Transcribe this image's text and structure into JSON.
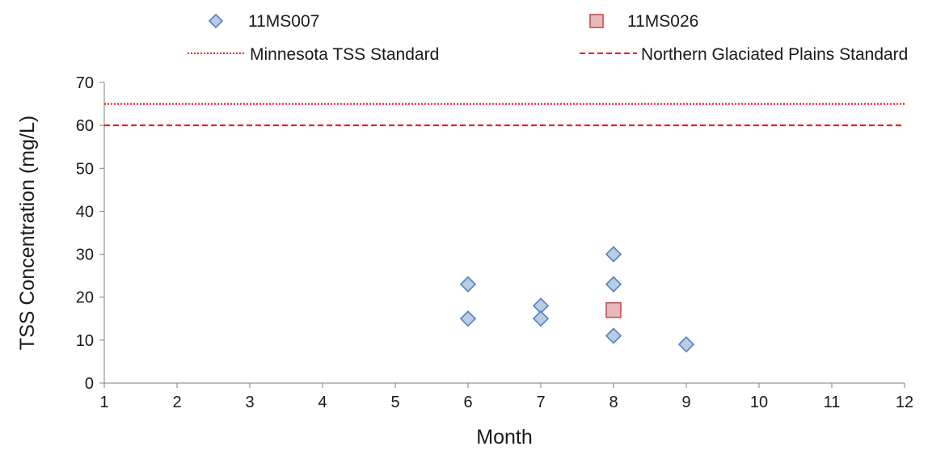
{
  "chart_data": {
    "type": "scatter",
    "title": "",
    "xlabel": "Month",
    "ylabel": "TSS Concentration (mg/L)",
    "xlim": [
      1,
      12
    ],
    "ylim": [
      0,
      70
    ],
    "xticks": [
      1,
      2,
      3,
      4,
      5,
      6,
      7,
      8,
      9,
      10,
      11,
      12
    ],
    "yticks": [
      0,
      10,
      20,
      30,
      40,
      50,
      60,
      70
    ],
    "grid": false,
    "legend_position": "top",
    "series": [
      {
        "name": "11MS007",
        "marker": "diamond",
        "color": "#b8cce4",
        "edge_color": "#4f81bd",
        "points": [
          {
            "x": 6,
            "y": 23
          },
          {
            "x": 6,
            "y": 15
          },
          {
            "x": 7,
            "y": 18
          },
          {
            "x": 7,
            "y": 15
          },
          {
            "x": 8,
            "y": 30
          },
          {
            "x": 8,
            "y": 23
          },
          {
            "x": 8,
            "y": 11
          },
          {
            "x": 9,
            "y": 9
          }
        ]
      },
      {
        "name": "11MS026",
        "marker": "square",
        "color": "#e6b9b8",
        "edge_color": "#c0504d",
        "points": [
          {
            "x": 8,
            "y": 17
          }
        ]
      }
    ],
    "reference_lines": [
      {
        "name": "Minnesota TSS Standard",
        "y": 65,
        "style": "dotted",
        "color": "#ff0000"
      },
      {
        "name": "Northern Glaciated Plains Standard",
        "y": 60,
        "style": "dashed",
        "color": "#ff0000"
      }
    ]
  }
}
